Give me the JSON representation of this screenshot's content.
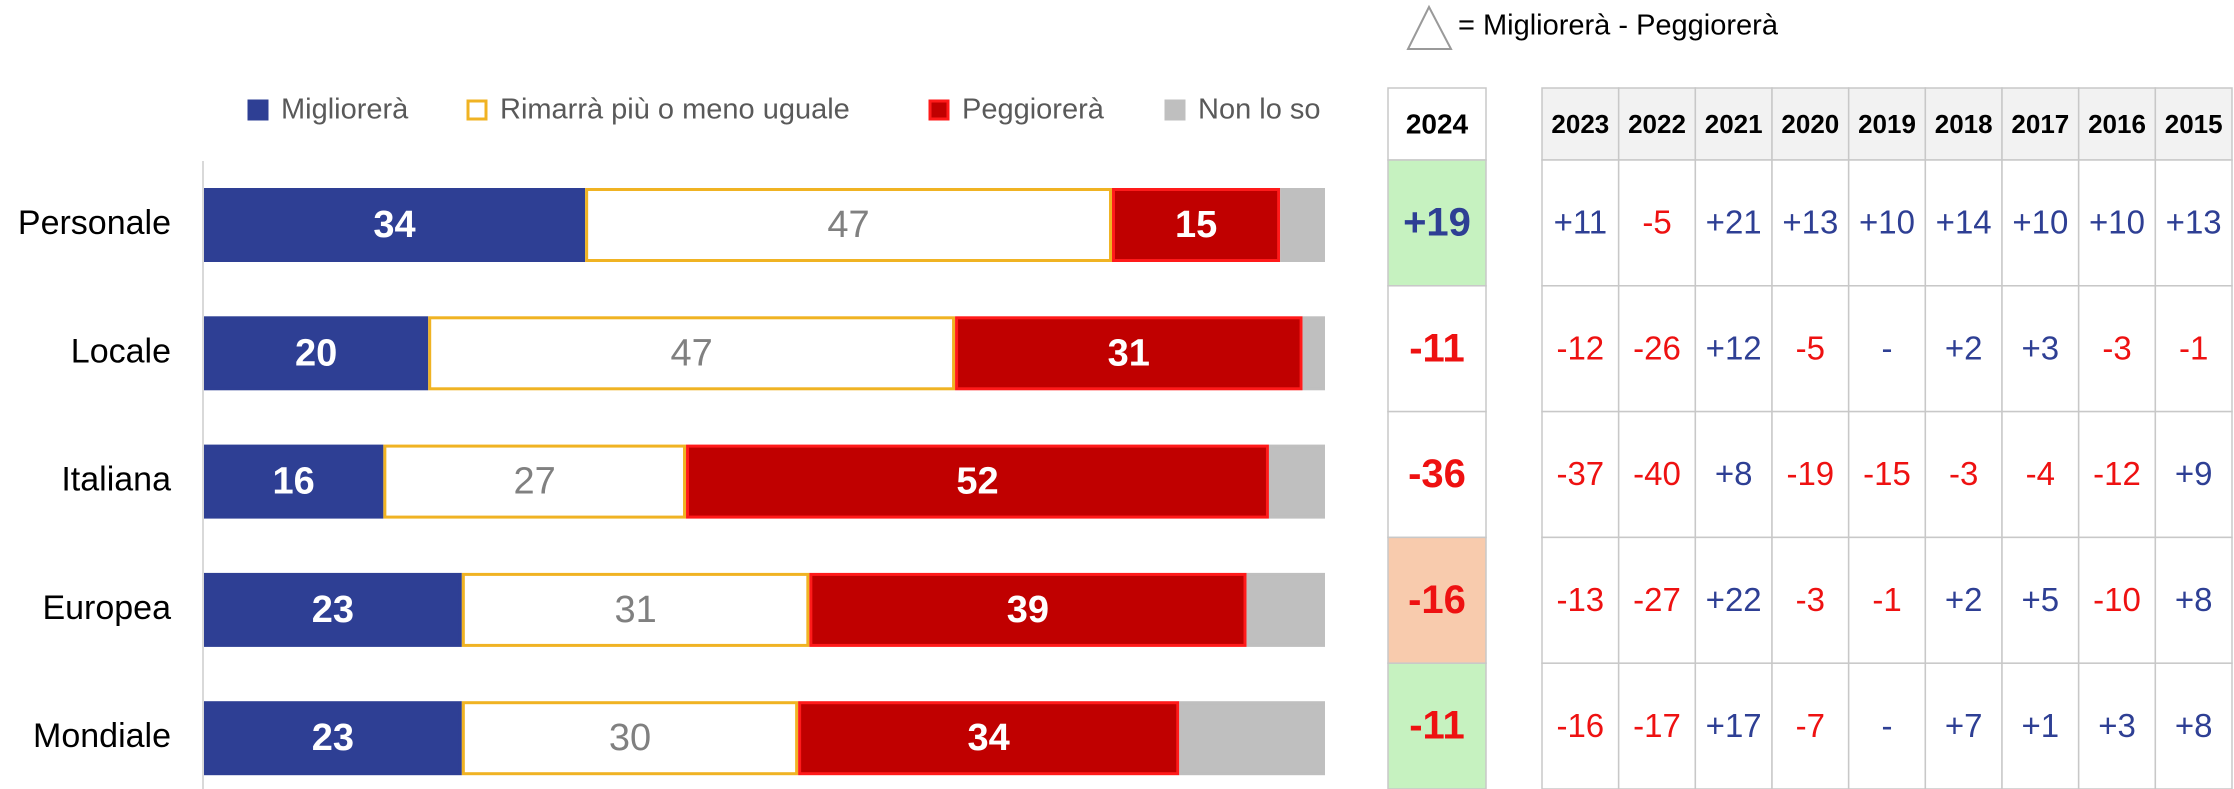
{
  "chart_data": {
    "type": "stacked_bar_horizontal",
    "categories": [
      "Personale",
      "Locale",
      "Italiana",
      "Europea",
      "Mondiale"
    ],
    "xlim": [
      0,
      100
    ],
    "series": [
      {
        "name": "Migliorerà",
        "color": "#2e3f94",
        "border": "#2e3f94",
        "label_color": "#ffffff",
        "values": [
          34,
          20,
          16,
          23,
          23
        ]
      },
      {
        "name": "Rimarrà più o meno uguale",
        "color": "#ffffff",
        "border": "#f0b323",
        "label_color": "#808080",
        "values": [
          47,
          47,
          27,
          31,
          30
        ]
      },
      {
        "name": "Peggiorerà",
        "color": "#c00000",
        "border": "#ff1a1a",
        "label_color": "#ffffff",
        "values": [
          15,
          31,
          52,
          39,
          34
        ]
      },
      {
        "name": "Non lo so",
        "color": "#bfbfbf",
        "border": "#bfbfbf",
        "values": [
          4,
          2,
          5,
          7,
          13
        ]
      }
    ]
  },
  "delta_note": "= Migliorerà - Peggiorerà",
  "table_2024": {
    "header": "2024",
    "values": [
      "+19",
      "-11",
      "-36",
      "-16",
      "-11"
    ],
    "cell_colors": [
      "#c6f2c0",
      "#ffffff",
      "#ffffff",
      "#f8cbad",
      "#c6f2c0"
    ]
  },
  "history": {
    "headers": [
      "2023",
      "2022",
      "2021",
      "2020",
      "2019",
      "2018",
      "2017",
      "2016",
      "2015"
    ],
    "rows": [
      [
        "+11",
        "-5",
        "+21",
        "+13",
        "+10",
        "+14",
        "+10",
        "+10",
        "+13"
      ],
      [
        "-12",
        "-26",
        "+12",
        "-5",
        "-",
        "+2",
        "+3",
        "-3",
        "-1"
      ],
      [
        "-37",
        "-40",
        "+8",
        "-19",
        "-15",
        "-3",
        "-4",
        "-12",
        "+9"
      ],
      [
        "-13",
        "-27",
        "+22",
        "-3",
        "-1",
        "+2",
        "+5",
        "-10",
        "+8"
      ],
      [
        "-16",
        "-17",
        "+17",
        "-7",
        "-",
        "+7",
        "+1",
        "+3",
        "+8"
      ]
    ]
  }
}
